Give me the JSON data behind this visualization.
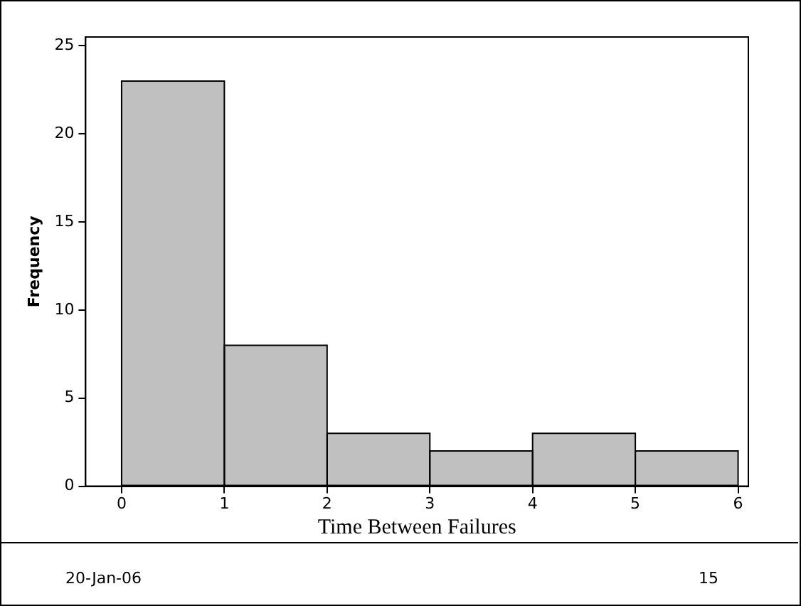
{
  "chart_data": {
    "type": "histogram",
    "xlabel": "Time Between Failures",
    "ylabel": "Frequency",
    "bins": [
      0,
      1,
      2,
      3,
      4,
      5,
      6
    ],
    "values": [
      23,
      8,
      3,
      2,
      3,
      2
    ],
    "color": "#c0c0c0",
    "xlim": [
      -0.35,
      6.1
    ],
    "xticks": [
      0,
      1,
      2,
      3,
      4,
      5,
      6
    ],
    "ylim": [
      0,
      25.5
    ],
    "yticks": [
      0,
      5,
      10,
      15,
      20,
      25
    ],
    "grid": false,
    "legend": false,
    "annotations": [
      "20-Jan-06",
      "15"
    ]
  }
}
